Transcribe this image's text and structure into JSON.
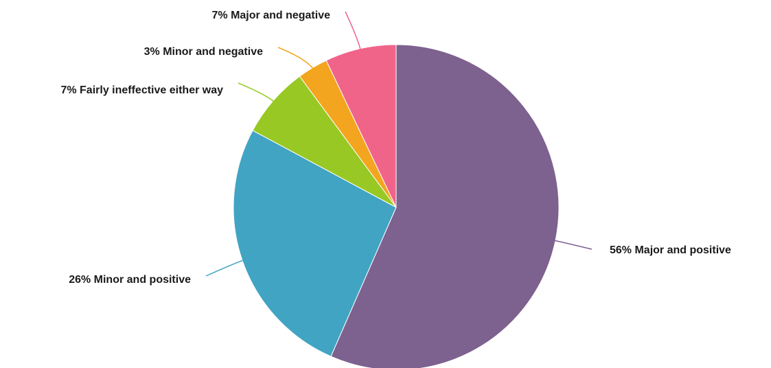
{
  "chart_data": {
    "type": "pie",
    "start_angle_deg": 0,
    "direction": "clockwise",
    "slices": [
      {
        "label": "Major and positive",
        "value": 56,
        "display": "56% Major and positive",
        "color": "#7d618e"
      },
      {
        "label": "Minor and positive",
        "value": 26,
        "display": "26% Minor and positive",
        "color": "#41a4c3"
      },
      {
        "label": "Fairly ineffective either way",
        "value": 7,
        "display": "7% Fairly ineffective either way",
        "color": "#98c824"
      },
      {
        "label": "Minor and negative",
        "value": 3,
        "display": "3% Minor and negative",
        "color": "#f3a51f"
      },
      {
        "label": "Major and negative",
        "value": 7,
        "display": "7% Major and negative",
        "color": "#f06489"
      }
    ]
  }
}
